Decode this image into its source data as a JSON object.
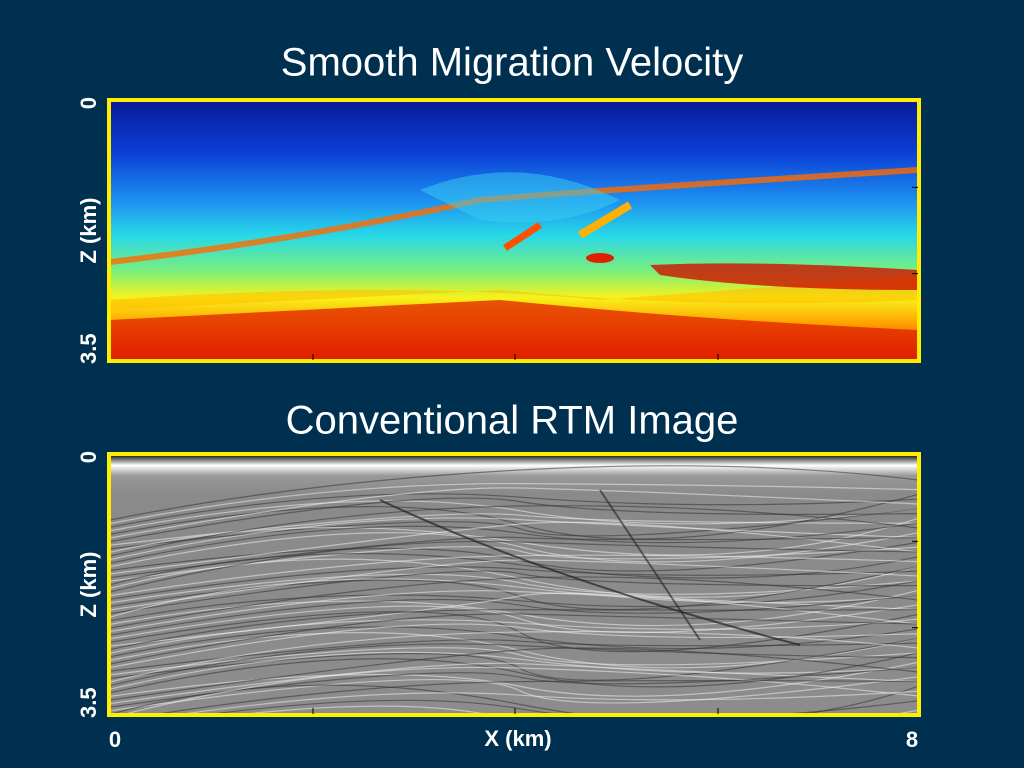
{
  "panels": [
    {
      "title": "Smooth Migration Velocity",
      "y_label": "Z (km)",
      "y_ticks": [
        "0",
        "3.5"
      ]
    },
    {
      "title": "Conventional RTM Image",
      "y_label": "Z (km)",
      "y_ticks": [
        "0",
        "3.5"
      ]
    }
  ],
  "x_label": "X (km)",
  "x_ticks": [
    "0",
    "8"
  ]
}
